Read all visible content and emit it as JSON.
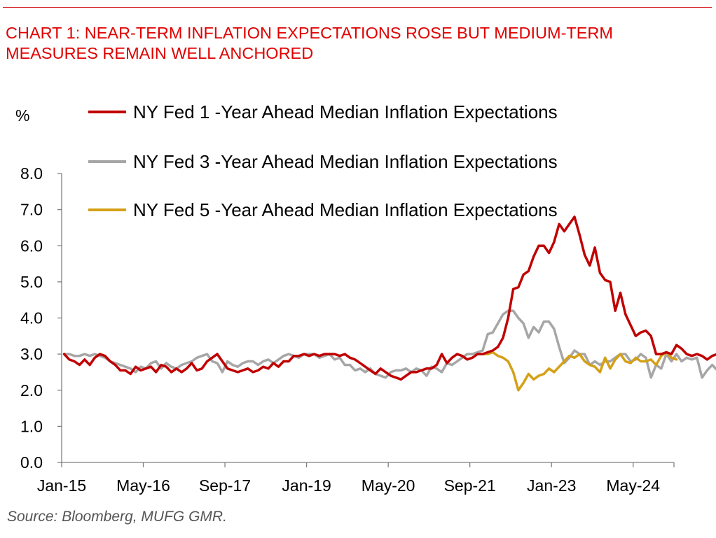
{
  "header": {
    "title_line1": "CHART 1: NEAR-TERM INFLATION EXPECTATIONS ROSE BUT MEDIUM-TERM",
    "title_line2": "MEASURES REMAIN WELL ANCHORED"
  },
  "footer": {
    "source": "Source: Bloomberg, MUFG GMR."
  },
  "chart_data": {
    "type": "line",
    "title": "CHART 1: NEAR-TERM INFLATION EXPECTATIONS ROSE BUT MEDIUM-TERM MEASURES REMAIN WELL ANCHORED",
    "ylabel": "%",
    "ylim": [
      0,
      8
    ],
    "yticks": [
      "0.0",
      "1.0",
      "2.0",
      "3.0",
      "4.0",
      "5.0",
      "6.0",
      "7.0",
      "8.0"
    ],
    "xticks": [
      "Jan-15",
      "May-16",
      "Sep-17",
      "Jan-19",
      "May-20",
      "Sep-21",
      "Jan-23",
      "May-24"
    ],
    "x_start": "2015-01",
    "x_end": "2024-12",
    "legend_position": "top",
    "grid": false,
    "series": [
      {
        "name": "NY Fed 1 -Year Ahead Median Inflation Expectations",
        "color": "#c00000",
        "start": "2015-01",
        "values": [
          3.0,
          2.85,
          2.8,
          2.7,
          2.85,
          2.7,
          2.9,
          3.0,
          2.95,
          2.8,
          2.7,
          2.55,
          2.55,
          2.45,
          2.65,
          2.55,
          2.6,
          2.65,
          2.5,
          2.7,
          2.65,
          2.5,
          2.6,
          2.5,
          2.6,
          2.75,
          2.55,
          2.6,
          2.8,
          2.9,
          3.0,
          2.8,
          2.6,
          2.55,
          2.5,
          2.55,
          2.6,
          2.5,
          2.55,
          2.65,
          2.6,
          2.75,
          2.65,
          2.8,
          2.8,
          2.95,
          2.95,
          3.0,
          2.95,
          3.0,
          2.95,
          3.0,
          3.0,
          3.0,
          2.95,
          3.0,
          2.9,
          2.85,
          2.75,
          2.65,
          2.55,
          2.45,
          2.6,
          2.5,
          2.4,
          2.35,
          2.3,
          2.4,
          2.5,
          2.5,
          2.55,
          2.6,
          2.6,
          2.7,
          3.0,
          2.75,
          2.9,
          3.0,
          2.95,
          2.85,
          2.9,
          3.0,
          3.0,
          3.05,
          3.1,
          3.2,
          3.45,
          4.0,
          4.8,
          4.85,
          5.2,
          5.3,
          5.7,
          6.0,
          6.0,
          5.8,
          6.1,
          6.6,
          6.4,
          6.6,
          6.8,
          6.3,
          5.75,
          5.45,
          5.95,
          5.25,
          5.05,
          5.0,
          4.2,
          4.7,
          4.1,
          3.8,
          3.5,
          3.6,
          3.65,
          3.5,
          3.0,
          3.0,
          3.05,
          3.0,
          3.25,
          3.15,
          3.0,
          2.95,
          3.0,
          2.95,
          2.85,
          2.95,
          3.0,
          3.0,
          3.15,
          3.6
        ]
      },
      {
        "name": "NY Fed 3 -Year Ahead Median Inflation Expectations",
        "color": "#a6a6a6",
        "start": "2015-01",
        "values": [
          3.0,
          3.0,
          2.95,
          2.95,
          3.0,
          2.95,
          3.0,
          2.95,
          2.9,
          2.8,
          2.75,
          2.7,
          2.65,
          2.6,
          2.5,
          2.65,
          2.6,
          2.75,
          2.8,
          2.6,
          2.75,
          2.65,
          2.6,
          2.7,
          2.75,
          2.8,
          2.9,
          2.95,
          3.0,
          2.8,
          2.75,
          2.5,
          2.8,
          2.7,
          2.65,
          2.75,
          2.8,
          2.8,
          2.7,
          2.8,
          2.85,
          2.75,
          2.85,
          2.95,
          3.0,
          2.95,
          2.9,
          3.0,
          3.0,
          3.0,
          2.9,
          2.95,
          3.0,
          2.85,
          2.9,
          2.7,
          2.7,
          2.55,
          2.6,
          2.5,
          2.6,
          2.45,
          2.4,
          2.35,
          2.5,
          2.55,
          2.55,
          2.6,
          2.5,
          2.6,
          2.55,
          2.4,
          2.65,
          2.6,
          2.5,
          2.75,
          2.7,
          2.8,
          2.9,
          3.0,
          3.0,
          3.05,
          3.1,
          3.55,
          3.6,
          3.85,
          4.1,
          4.2,
          4.2,
          4.0,
          3.85,
          3.45,
          3.75,
          3.6,
          3.9,
          3.9,
          3.7,
          3.2,
          2.75,
          2.9,
          3.1,
          3.0,
          3.0,
          2.7,
          2.8,
          2.7,
          2.8,
          2.8,
          2.9,
          3.0,
          3.0,
          2.8,
          2.85,
          3.0,
          2.9,
          2.35,
          2.7,
          2.6,
          3.0,
          2.8,
          3.0,
          2.8,
          2.9,
          2.85,
          2.9,
          2.35,
          2.55,
          2.7,
          2.55,
          2.55,
          2.65,
          3.0,
          3.0,
          3.0
        ]
      },
      {
        "name": "NY Fed 5 -Year Ahead Median Inflation Expectations",
        "color": "#d4a017",
        "start": "2021-11",
        "values": [
          3.0,
          3.0,
          3.05,
          2.95,
          2.9,
          2.8,
          2.5,
          2.0,
          2.2,
          2.45,
          2.3,
          2.4,
          2.45,
          2.6,
          2.5,
          2.65,
          2.8,
          2.95,
          2.9,
          3.0,
          2.8,
          2.7,
          2.65,
          2.5,
          2.9,
          2.6,
          2.85,
          3.0,
          2.8,
          2.75,
          2.9,
          2.8,
          2.8,
          2.85,
          2.7,
          2.95,
          3.05,
          2.9,
          2.85
        ]
      }
    ]
  }
}
